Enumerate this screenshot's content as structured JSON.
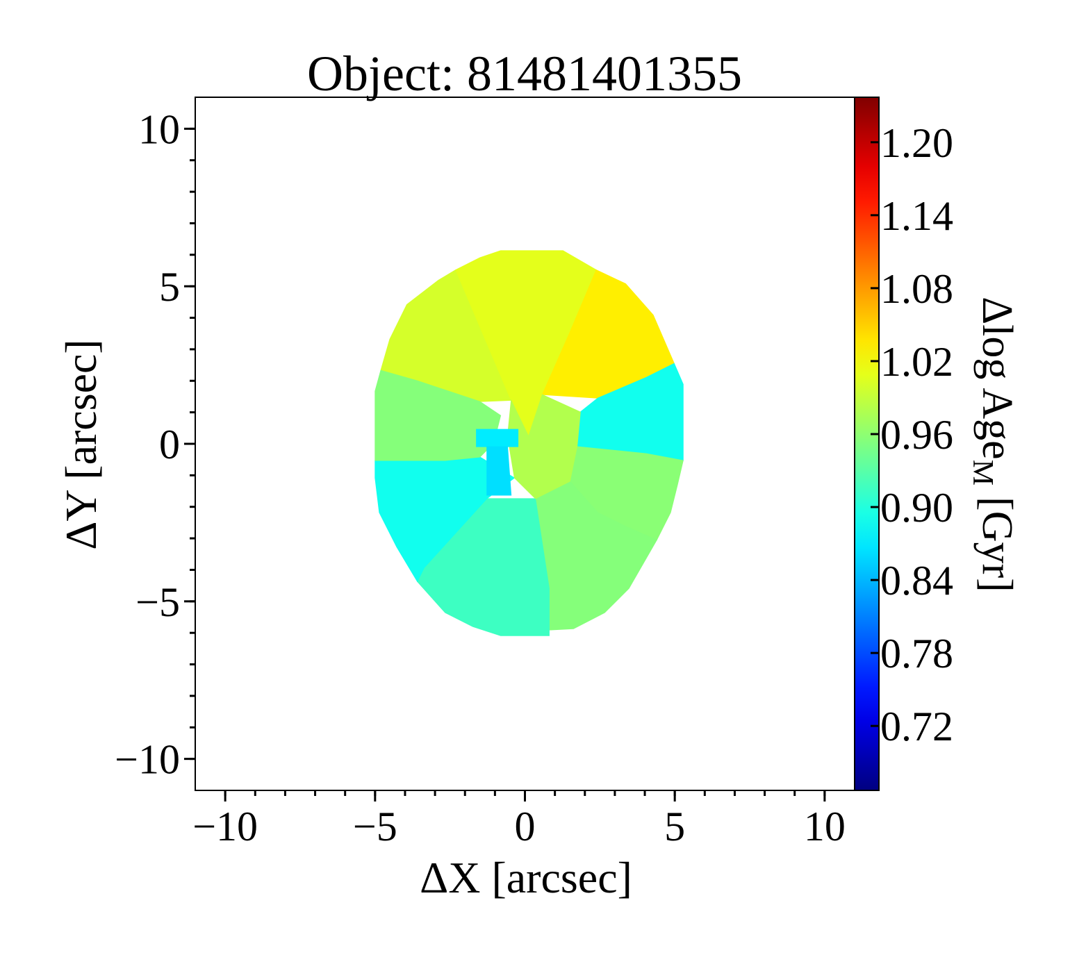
{
  "chart_data": {
    "type": "map",
    "title": "Object: 81481401355",
    "xlabel": "ΔX [arcsec]",
    "ylabel": "ΔY [arcsec]",
    "colorbar_label": "Δlog Age",
    "colorbar_label_sub": "M",
    "colorbar_label_unit": "[Gyr]",
    "colormap": "jet",
    "xlim": [
      -11,
      11
    ],
    "ylim": [
      -11,
      11
    ],
    "xticks": [
      {
        "value": -10,
        "label": "−10"
      },
      {
        "value": -5,
        "label": "−5"
      },
      0,
      5,
      10
    ],
    "yticks": [
      {
        "value": -10,
        "label": "−10"
      },
      {
        "value": -5,
        "label": "−5"
      },
      0,
      5,
      10
    ],
    "xminorticks": [
      -10,
      -9,
      -8,
      -7,
      -6,
      -5,
      -4,
      -3,
      -2,
      -1,
      0,
      1,
      2,
      3,
      4,
      5,
      6,
      7,
      8,
      9,
      10
    ],
    "yminorticks": [
      -10,
      -9,
      -8,
      -7,
      -6,
      -5,
      -4,
      -3,
      -2,
      -1,
      0,
      1,
      2,
      3,
      4,
      5,
      6,
      7,
      8,
      9,
      10
    ],
    "clim": [
      0.667,
      1.237
    ],
    "cticks": [
      0.72,
      0.78,
      0.84,
      {
        "value": 0.9,
        "label": "0.90"
      },
      0.96,
      1.02,
      1.08,
      1.14,
      {
        "value": 1.2,
        "label": "1.20"
      }
    ],
    "regions": [
      {
        "value": 1.0,
        "x": [
          -2.31,
          -2.89,
          -3.94,
          -4.51,
          -4.81,
          -3.59,
          -1.5,
          -0.46
        ],
        "y": [
          5.52,
          5.19,
          4.42,
          3.32,
          2.33,
          2.0,
          1.34,
          1.38
        ]
      },
      {
        "value": 1.008,
        "x": [
          -2.31,
          -1.5,
          -0.81,
          1.27,
          2.38,
          1.5,
          0.58,
          0.12,
          -0.46
        ],
        "y": [
          5.52,
          5.91,
          6.13,
          6.13,
          5.52,
          3.54,
          1.56,
          0.24,
          1.38
        ]
      },
      {
        "value": 1.032,
        "x": [
          2.38,
          3.36,
          4.28,
          4.98,
          4.05,
          2.43,
          0.58,
          1.5
        ],
        "y": [
          5.52,
          5.08,
          4.09,
          2.55,
          2.11,
          1.45,
          1.56,
          3.54
        ]
      },
      {
        "value": 0.89,
        "x": [
          4.98,
          5.28,
          5.28,
          4.05,
          1.74,
          1.85,
          2.43,
          4.05
        ],
        "y": [
          2.55,
          1.89,
          -0.53,
          -0.31,
          -0.09,
          1.01,
          1.45,
          2.11
        ]
      },
      {
        "value": 0.958,
        "x": [
          5.28,
          5.09,
          4.86,
          4.4,
          3.36,
          2.43,
          1.5,
          1.74,
          4.05
        ],
        "y": [
          -0.53,
          -1.3,
          -2.18,
          -3.05,
          -2.62,
          -2.18,
          -1.19,
          -0.09,
          -0.31
        ]
      },
      {
        "value": 0.955,
        "x": [
          4.4,
          3.47,
          2.66,
          1.62,
          0.81,
          0.81,
          0.35,
          1.5,
          2.43,
          3.36
        ],
        "y": [
          -3.05,
          -4.59,
          -5.36,
          -5.87,
          -5.91,
          -4.59,
          -1.74,
          -1.19,
          -2.18,
          -2.62
        ]
      },
      {
        "value": 0.915,
        "x": [
          0.81,
          0.81,
          -0.81,
          -1.74,
          -2.66,
          -3.59,
          -3.36,
          -1.27,
          0.35,
          0.81
        ],
        "y": [
          -5.91,
          -6.09,
          -6.09,
          -5.8,
          -5.36,
          -4.37,
          -3.93,
          -1.74,
          -1.74,
          -4.59
        ]
      },
      {
        "value": 0.89,
        "x": [
          -3.59,
          -4.28,
          -4.86,
          -5.0,
          -5.0,
          -2.66,
          -1.5,
          -0.35,
          -1.27,
          -3.36
        ],
        "y": [
          -4.37,
          -3.27,
          -2.18,
          -1.08,
          -0.53,
          -0.53,
          -0.42,
          -1.08,
          -1.74,
          -3.93
        ]
      },
      {
        "value": 0.955,
        "x": [
          -5.0,
          -5.0,
          -4.81,
          -3.59,
          -1.5,
          -0.81,
          -1.04,
          -1.5,
          -2.66
        ],
        "y": [
          -0.53,
          1.67,
          2.33,
          2.0,
          1.34,
          0.9,
          0.02,
          -0.42,
          -0.53
        ]
      },
      {
        "value": 0.98,
        "x": [
          -0.46,
          0.12,
          0.58,
          1.85,
          1.74,
          1.5,
          0.35,
          -0.35,
          -0.58
        ],
        "y": [
          1.38,
          0.24,
          1.56,
          1.01,
          -0.09,
          -1.19,
          -1.74,
          -1.08,
          0.24
        ]
      },
      {
        "value": 0.87,
        "x": [
          -1.62,
          -0.23,
          -0.23,
          -1.62
        ],
        "y": [
          0.46,
          0.46,
          -0.09,
          -0.09
        ]
      },
      {
        "value": 0.863,
        "x": [
          -1.27,
          -0.58,
          -0.46,
          -1.27
        ],
        "y": [
          -0.09,
          -0.09,
          -1.63,
          -1.63
        ]
      }
    ]
  }
}
